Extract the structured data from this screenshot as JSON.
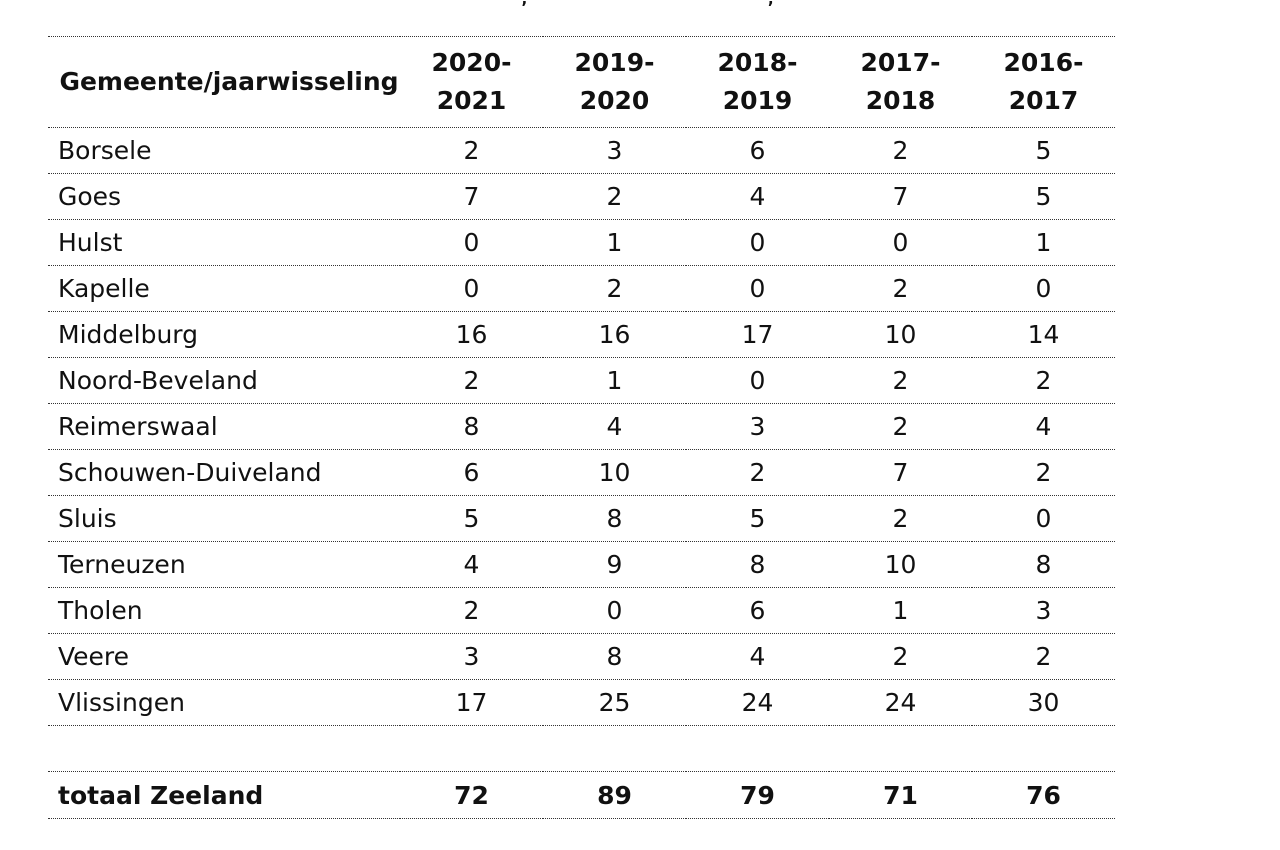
{
  "header": {
    "name_column": "Gemeente/jaarwisseling",
    "years": [
      {
        "line1": "2020-",
        "line2": "2021"
      },
      {
        "line1": "2019-",
        "line2": "2020"
      },
      {
        "line1": "2018-",
        "line2": "2019"
      },
      {
        "line1": "2017-",
        "line2": "2018"
      },
      {
        "line1": "2016-",
        "line2": "2017"
      }
    ]
  },
  "rows": [
    {
      "name": "Borsele",
      "values": [
        "2",
        "3",
        "6",
        "2",
        "5"
      ]
    },
    {
      "name": "Goes",
      "values": [
        "7",
        "2",
        "4",
        "7",
        "5"
      ]
    },
    {
      "name": "Hulst",
      "values": [
        "0",
        "1",
        "0",
        "0",
        "1"
      ]
    },
    {
      "name": "Kapelle",
      "values": [
        "0",
        "2",
        "0",
        "2",
        "0"
      ]
    },
    {
      "name": "Middelburg",
      "values": [
        "16",
        "16",
        "17",
        "10",
        "14"
      ]
    },
    {
      "name": "Noord-Beveland",
      "values": [
        "2",
        "1",
        "0",
        "2",
        "2"
      ]
    },
    {
      "name": "Reimerswaal",
      "values": [
        "8",
        "4",
        "3",
        "2",
        "4"
      ]
    },
    {
      "name": "Schouwen-Duiveland",
      "values": [
        "6",
        "10",
        "2",
        "7",
        "2"
      ]
    },
    {
      "name": "Sluis",
      "values": [
        "5",
        "8",
        "5",
        "2",
        "0"
      ]
    },
    {
      "name": "Terneuzen",
      "values": [
        "4",
        "9",
        "8",
        "10",
        "8"
      ]
    },
    {
      "name": "Tholen",
      "values": [
        "2",
        "0",
        "6",
        "1",
        "3"
      ]
    },
    {
      "name": "Veere",
      "values": [
        "3",
        "8",
        "4",
        "2",
        "2"
      ]
    },
    {
      "name": "Vlissingen",
      "values": [
        "17",
        "25",
        "24",
        "24",
        "30"
      ]
    }
  ],
  "total": {
    "name": "totaal Zeeland",
    "values": [
      "72",
      "89",
      "79",
      "71",
      "76"
    ]
  }
}
